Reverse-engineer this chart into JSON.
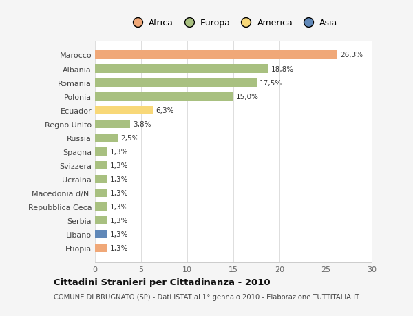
{
  "countries": [
    "Marocco",
    "Albania",
    "Romania",
    "Polonia",
    "Ecuador",
    "Regno Unito",
    "Russia",
    "Spagna",
    "Svizzera",
    "Ucraina",
    "Macedonia d/N.",
    "Repubblica Ceca",
    "Serbia",
    "Libano",
    "Etiopia"
  ],
  "values": [
    26.3,
    18.8,
    17.5,
    15.0,
    6.3,
    3.8,
    2.5,
    1.3,
    1.3,
    1.3,
    1.3,
    1.3,
    1.3,
    1.3,
    1.3
  ],
  "labels": [
    "26,3%",
    "18,8%",
    "17,5%",
    "15,0%",
    "6,3%",
    "3,8%",
    "2,5%",
    "1,3%",
    "1,3%",
    "1,3%",
    "1,3%",
    "1,3%",
    "1,3%",
    "1,3%",
    "1,3%"
  ],
  "colors": [
    "#f0a878",
    "#a8c080",
    "#a8c080",
    "#a8c080",
    "#f8d878",
    "#a8c080",
    "#a8c080",
    "#a8c080",
    "#a8c080",
    "#a8c080",
    "#a8c080",
    "#a8c080",
    "#a8c080",
    "#6088b8",
    "#f0a878"
  ],
  "legend_labels": [
    "Africa",
    "Europa",
    "America",
    "Asia"
  ],
  "legend_colors": [
    "#f0a878",
    "#a8c080",
    "#f8d878",
    "#6088b8"
  ],
  "title": "Cittadini Stranieri per Cittadinanza - 2010",
  "subtitle": "COMUNE DI BRUGNATO (SP) - Dati ISTAT al 1° gennaio 2010 - Elaborazione TUTTITALIA.IT",
  "xlim": [
    0,
    30
  ],
  "xticks": [
    0,
    5,
    10,
    15,
    20,
    25,
    30
  ],
  "bg_color": "#f5f5f5",
  "plot_bg_color": "#ffffff"
}
